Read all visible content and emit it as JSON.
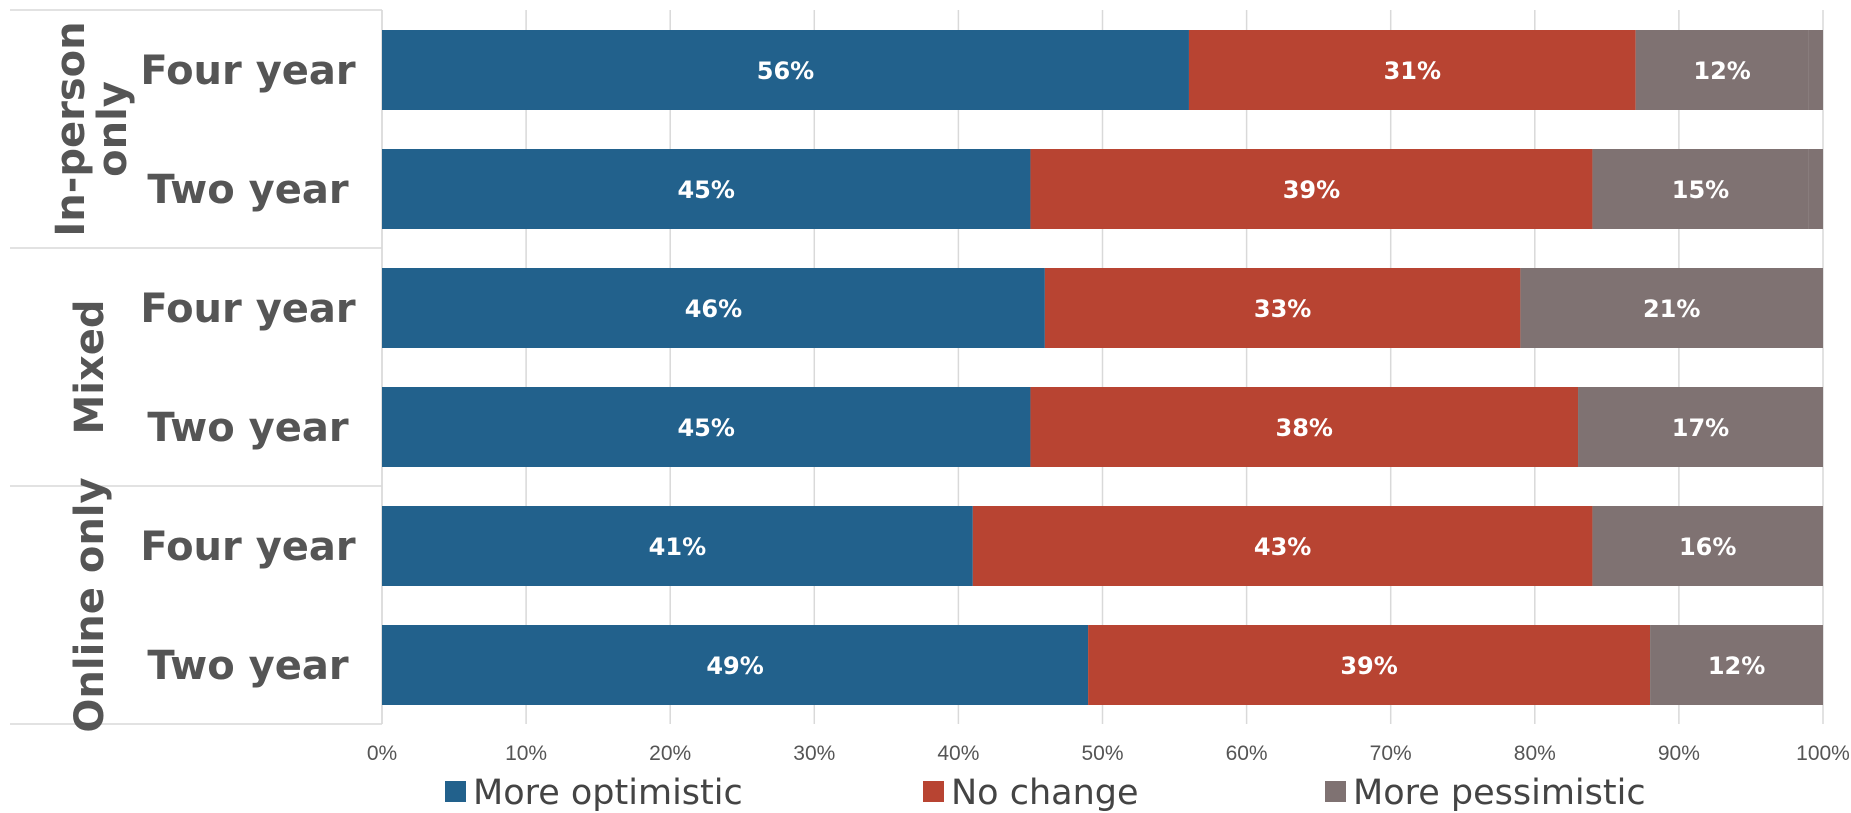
{
  "chart_data": {
    "type": "bar",
    "orientation": "horizontal",
    "stacked": true,
    "groups": [
      {
        "name": "In-person only",
        "rows": [
          "Four year",
          "Two year"
        ]
      },
      {
        "name": "Mixed",
        "rows": [
          "Four year",
          "Two year"
        ]
      },
      {
        "name": "Online only",
        "rows": [
          "Four year",
          "Two year"
        ]
      }
    ],
    "categories": [
      "Four year",
      "Two year",
      "Four year",
      "Two year",
      "Four year",
      "Two year"
    ],
    "series": [
      {
        "name": "More optimistic",
        "color": "#22618c",
        "values": [
          56,
          45,
          46,
          45,
          41,
          49
        ],
        "labels": [
          "56%",
          "45%",
          "46%",
          "45%",
          "41%",
          "49%"
        ]
      },
      {
        "name": "No change",
        "color": "#b84432",
        "values": [
          31,
          39,
          33,
          38,
          43,
          39
        ],
        "labels": [
          "31%",
          "39%",
          "33%",
          "38%",
          "43%",
          "39%"
        ]
      },
      {
        "name": "More pessimistic",
        "color": "#7f7272",
        "values": [
          12,
          15,
          21,
          17,
          16,
          12
        ],
        "labels": [
          "12%",
          "15%",
          "21%",
          "17%",
          "16%",
          "12%"
        ]
      }
    ],
    "xlim": [
      0,
      100
    ],
    "x_ticks": [
      "0%",
      "10%",
      "20%",
      "30%",
      "40%",
      "50%",
      "60%",
      "70%",
      "80%",
      "90%",
      "100%"
    ],
    "grid": true,
    "legend_position": "bottom"
  }
}
